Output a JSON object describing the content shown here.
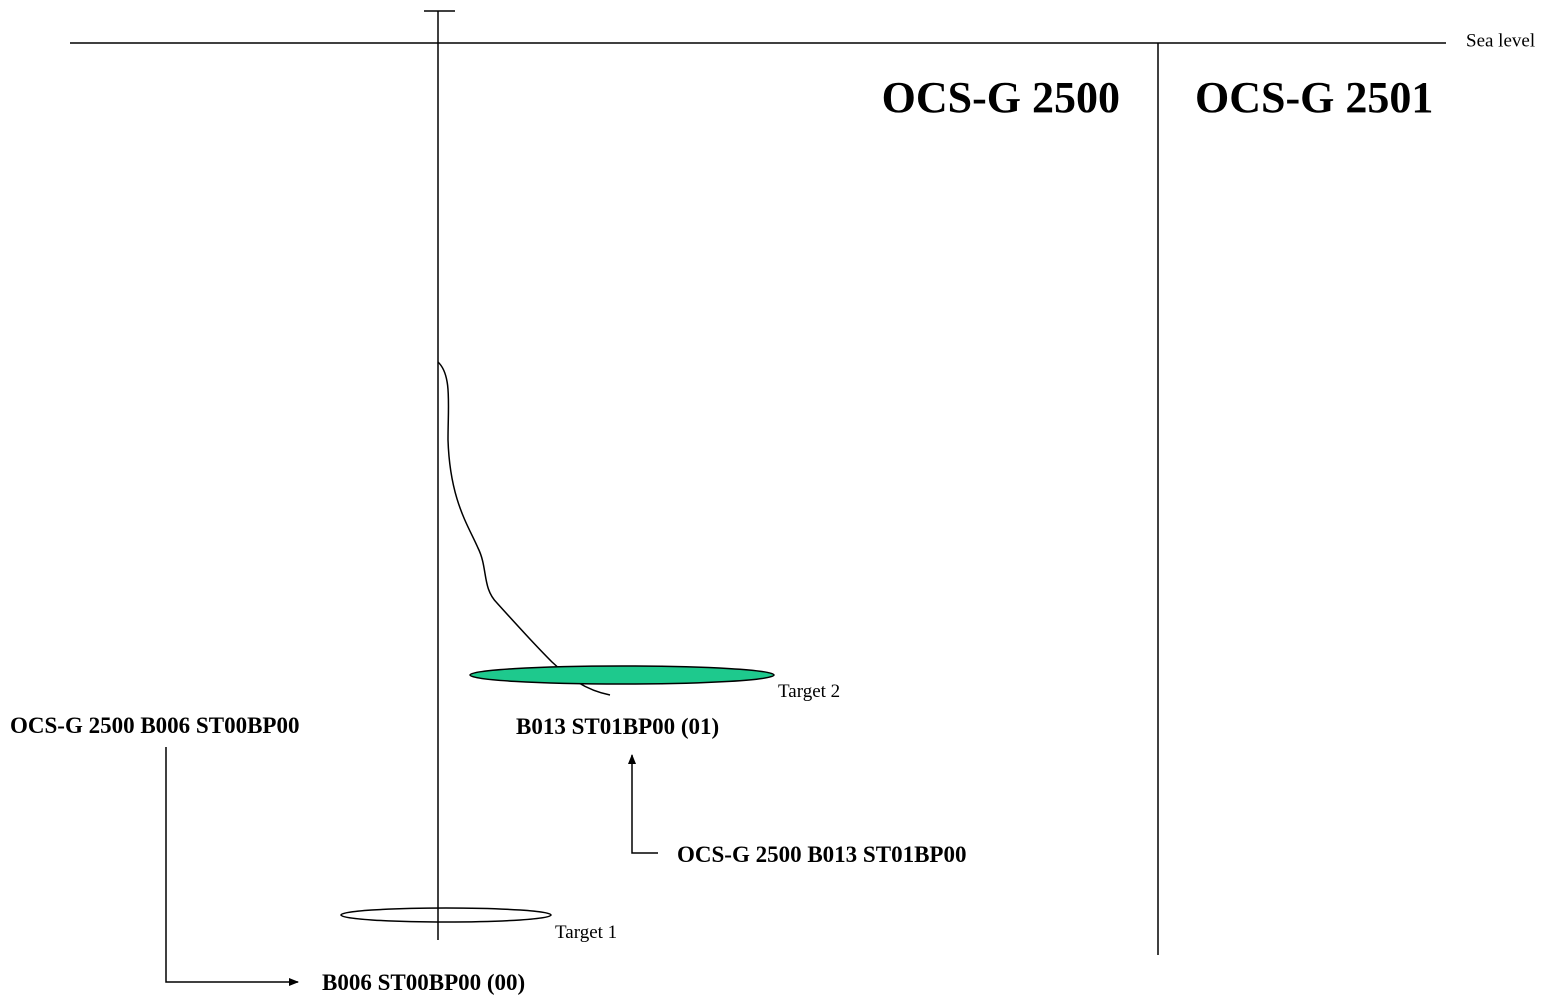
{
  "sea_level_label": "Sea level",
  "lease_left": "OCS-G 2500",
  "lease_right": "OCS-G 2501",
  "target1_label": "Target 1",
  "target2_label": "Target 2",
  "target2_fill": "#1ec98d",
  "origin_left_label": "OCS-G 2500 B006 ST00BP00",
  "result_left_label": "B006 ST00BP00 (00)",
  "result_mid_label": "B013 ST01BP00 (01)",
  "origin_mid_label": "OCS-G 2500 B013 ST01BP00"
}
